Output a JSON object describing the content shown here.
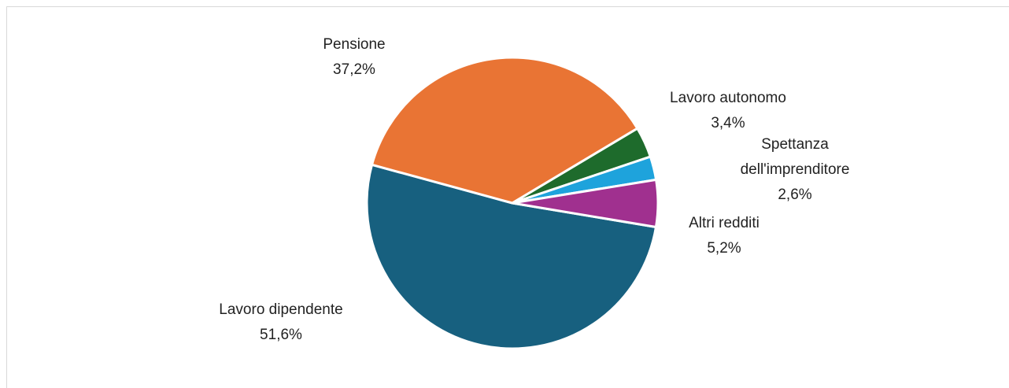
{
  "chart_data": {
    "type": "pie",
    "categories": [
      "Lavoro dipendente",
      "Pensione",
      "Lavoro autonomo",
      "Spettanza dell'imprenditore",
      "Altri redditi"
    ],
    "values": [
      51.6,
      37.2,
      3.4,
      2.6,
      5.2
    ],
    "value_labels": [
      "51,6%",
      "37,2%",
      "3,4%",
      "2,6%",
      "5,2%"
    ],
    "colors": [
      "#17607f",
      "#e97434",
      "#1e6b2c",
      "#1ea3dc",
      "#a0308f"
    ]
  }
}
